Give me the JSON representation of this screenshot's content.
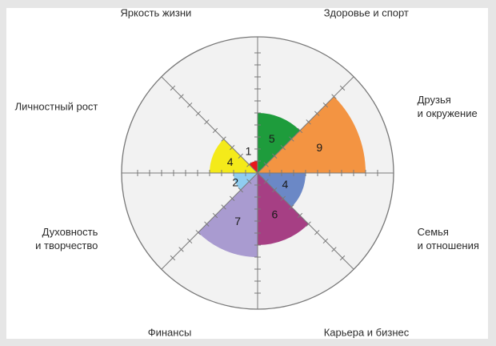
{
  "chart_data": {
    "type": "polar-area",
    "title": "",
    "rmax": 10,
    "grid": true,
    "categories": [
      {
        "name": "Здоровье и спорт",
        "value": 5,
        "color": "#1e9c3c"
      },
      {
        "name": "Друзья и окружение",
        "lines": [
          "Друзья",
          "и окружение"
        ],
        "value": 9,
        "color": "#f39442"
      },
      {
        "name": "Семья и отношения",
        "lines": [
          "Семья",
          "и отношения"
        ],
        "value": 4,
        "color": "#6b88c6"
      },
      {
        "name": "Карьера и бизнес",
        "value": 6,
        "color": "#a63f84"
      },
      {
        "name": "Финансы",
        "value": 7,
        "color": "#a99bd0"
      },
      {
        "name": "Духовность и творчество",
        "lines": [
          "Духовность",
          "и творчество"
        ],
        "value": 2,
        "color": "#8fcdf0"
      },
      {
        "name": "Личностный рост",
        "value": 4,
        "color": "#f4ea1a"
      },
      {
        "name": "Яркость жизни",
        "value": 1,
        "color": "#e8171c"
      }
    ]
  },
  "colors": {
    "background": "#e6e6e6",
    "panel": "#ffffff",
    "wheel": "#f2f2f2",
    "grid": "#7a7a7a"
  }
}
